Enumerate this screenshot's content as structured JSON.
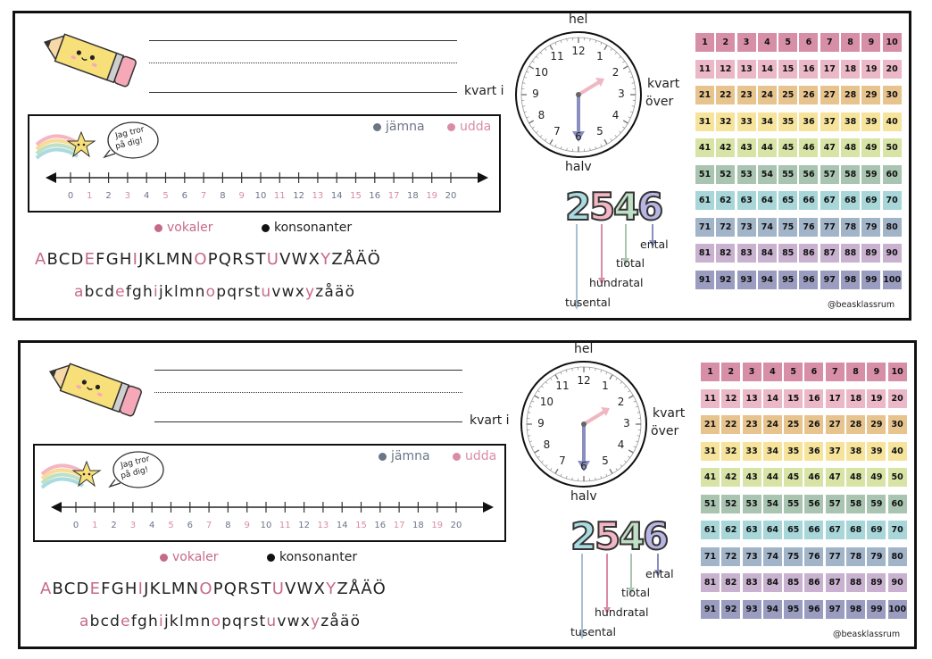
{
  "cards": [
    {
      "writing": {
        "kvart_i": "kvart i"
      },
      "clock": {
        "hel": "hel",
        "halv": "halv",
        "kvart_over_1": "kvart",
        "kvart_over_2": "över",
        "numbers": [
          "12",
          "1",
          "2",
          "3",
          "4",
          "5",
          "6",
          "7",
          "8",
          "9",
          "10",
          "11"
        ]
      },
      "numberline": {
        "speech": [
          "Jag tror",
          "på dig!"
        ],
        "legend_even": "jämna",
        "legend_odd": "udda",
        "ticks": [
          "0",
          "1",
          "2",
          "3",
          "4",
          "5",
          "6",
          "7",
          "8",
          "9",
          "10",
          "11",
          "12",
          "13",
          "14",
          "15",
          "16",
          "17",
          "18",
          "19",
          "20"
        ]
      },
      "letters": {
        "legend_vowels": "vokaler",
        "legend_consonants": "konsonanter",
        "upper": [
          "A",
          "B",
          "C",
          "D",
          "E",
          "F",
          "G",
          "H",
          "I",
          "J",
          "K",
          "L",
          "M",
          "N",
          "O",
          "P",
          "Q",
          "R",
          "S",
          "T",
          "U",
          "V",
          "W",
          "X",
          "Y",
          "Z",
          "Å",
          "Ä",
          "Ö"
        ],
        "lower": [
          "a",
          "b",
          "c",
          "d",
          "e",
          "f",
          "g",
          "h",
          "i",
          "j",
          "k",
          "l",
          "m",
          "n",
          "o",
          "p",
          "q",
          "r",
          "s",
          "t",
          "u",
          "v",
          "w",
          "x",
          "y",
          "z",
          "å",
          "ä",
          "ö"
        ]
      },
      "place_value": {
        "digits": [
          "2",
          "5",
          "4",
          "6"
        ],
        "ental": "ental",
        "tiotal": "tiotal",
        "hundratal": "hundratal",
        "tusental": "tusental"
      },
      "hundred_chart": {
        "credit": "@beasklassrum"
      }
    },
    {
      "writing": {
        "kvart_i": "kvart i"
      },
      "clock": {
        "hel": "hel",
        "halv": "halv",
        "kvart_over_1": "kvart",
        "kvart_over_2": "över",
        "numbers": [
          "12",
          "1",
          "2",
          "3",
          "4",
          "5",
          "6",
          "7",
          "8",
          "9",
          "10",
          "11"
        ]
      },
      "numberline": {
        "speech": [
          "Jag tror",
          "på dig!"
        ],
        "legend_even": "jämna",
        "legend_odd": "udda",
        "ticks": [
          "0",
          "1",
          "2",
          "3",
          "4",
          "5",
          "6",
          "7",
          "8",
          "9",
          "10",
          "11",
          "12",
          "13",
          "14",
          "15",
          "16",
          "17",
          "18",
          "19",
          "20"
        ]
      },
      "letters": {
        "legend_vowels": "vokaler",
        "legend_consonants": "konsonanter",
        "upper": [
          "A",
          "B",
          "C",
          "D",
          "E",
          "F",
          "G",
          "H",
          "I",
          "J",
          "K",
          "L",
          "M",
          "N",
          "O",
          "P",
          "Q",
          "R",
          "S",
          "T",
          "U",
          "V",
          "W",
          "X",
          "Y",
          "Z",
          "Å",
          "Ä",
          "Ö"
        ],
        "lower": [
          "a",
          "b",
          "c",
          "d",
          "e",
          "f",
          "g",
          "h",
          "i",
          "j",
          "k",
          "l",
          "m",
          "n",
          "o",
          "p",
          "q",
          "r",
          "s",
          "t",
          "u",
          "v",
          "w",
          "x",
          "y",
          "z",
          "å",
          "ä",
          "ö"
        ]
      },
      "place_value": {
        "digits": [
          "2",
          "5",
          "4",
          "6"
        ],
        "ental": "ental",
        "tiotal": "tiotal",
        "hundratal": "hundratal",
        "tusental": "tusental"
      },
      "hundred_chart": {
        "credit": "@beasklassrum"
      }
    }
  ],
  "colors": {
    "vowel": "#c66a8a",
    "even": "#6b7588",
    "odd": "#d98ca6",
    "clock_hour_hand": "#f0b7c3",
    "clock_minute_hand": "#8b8fbf",
    "row_colors": [
      "#d78ea7",
      "#ebb8c8",
      "#e7c48e",
      "#f6e39c",
      "#d8e3a6",
      "#a9c5b1",
      "#a8d6d9",
      "#a2b4c8",
      "#c9b2cf",
      "#9a9dbf"
    ],
    "digit_colors": [
      "#a9dbe0",
      "#f3b6c4",
      "#bfe0c4",
      "#b7b6e3"
    ]
  },
  "grid_numbers": [
    1,
    2,
    3,
    4,
    5,
    6,
    7,
    8,
    9,
    10,
    11,
    12,
    13,
    14,
    15,
    16,
    17,
    18,
    19,
    20,
    21,
    22,
    23,
    24,
    25,
    26,
    27,
    28,
    29,
    30,
    31,
    32,
    33,
    34,
    35,
    36,
    37,
    38,
    39,
    40,
    41,
    42,
    43,
    44,
    45,
    46,
    47,
    48,
    49,
    50,
    51,
    52,
    53,
    54,
    55,
    56,
    57,
    58,
    59,
    60,
    61,
    62,
    63,
    64,
    65,
    66,
    67,
    68,
    69,
    70,
    71,
    72,
    73,
    74,
    75,
    76,
    77,
    78,
    79,
    80,
    81,
    82,
    83,
    84,
    85,
    86,
    87,
    88,
    89,
    90,
    91,
    92,
    93,
    94,
    95,
    96,
    97,
    98,
    99,
    100
  ]
}
